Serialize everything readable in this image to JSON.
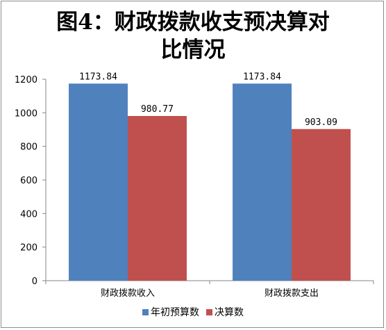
{
  "chart_data": {
    "type": "bar",
    "title_lines": [
      "图4：财政拨款收支预决算对",
      "比情况"
    ],
    "categories": [
      "财政拨款收入",
      "财政拨款支出"
    ],
    "series": [
      {
        "name": "年初预算数",
        "color": "#4f81bd",
        "values": [
          1173.84,
          1173.84
        ],
        "labels": [
          "1173.84",
          "1173.84"
        ]
      },
      {
        "name": "决算数",
        "color": "#c0504d",
        "values": [
          980.77,
          903.09
        ],
        "labels": [
          "980.77",
          "903.09"
        ]
      }
    ],
    "ylim": [
      0,
      1200
    ],
    "yticks": [
      "0",
      "200",
      "400",
      "600",
      "800",
      "1000",
      "1200"
    ],
    "legend_position": "bottom",
    "grid": false
  }
}
